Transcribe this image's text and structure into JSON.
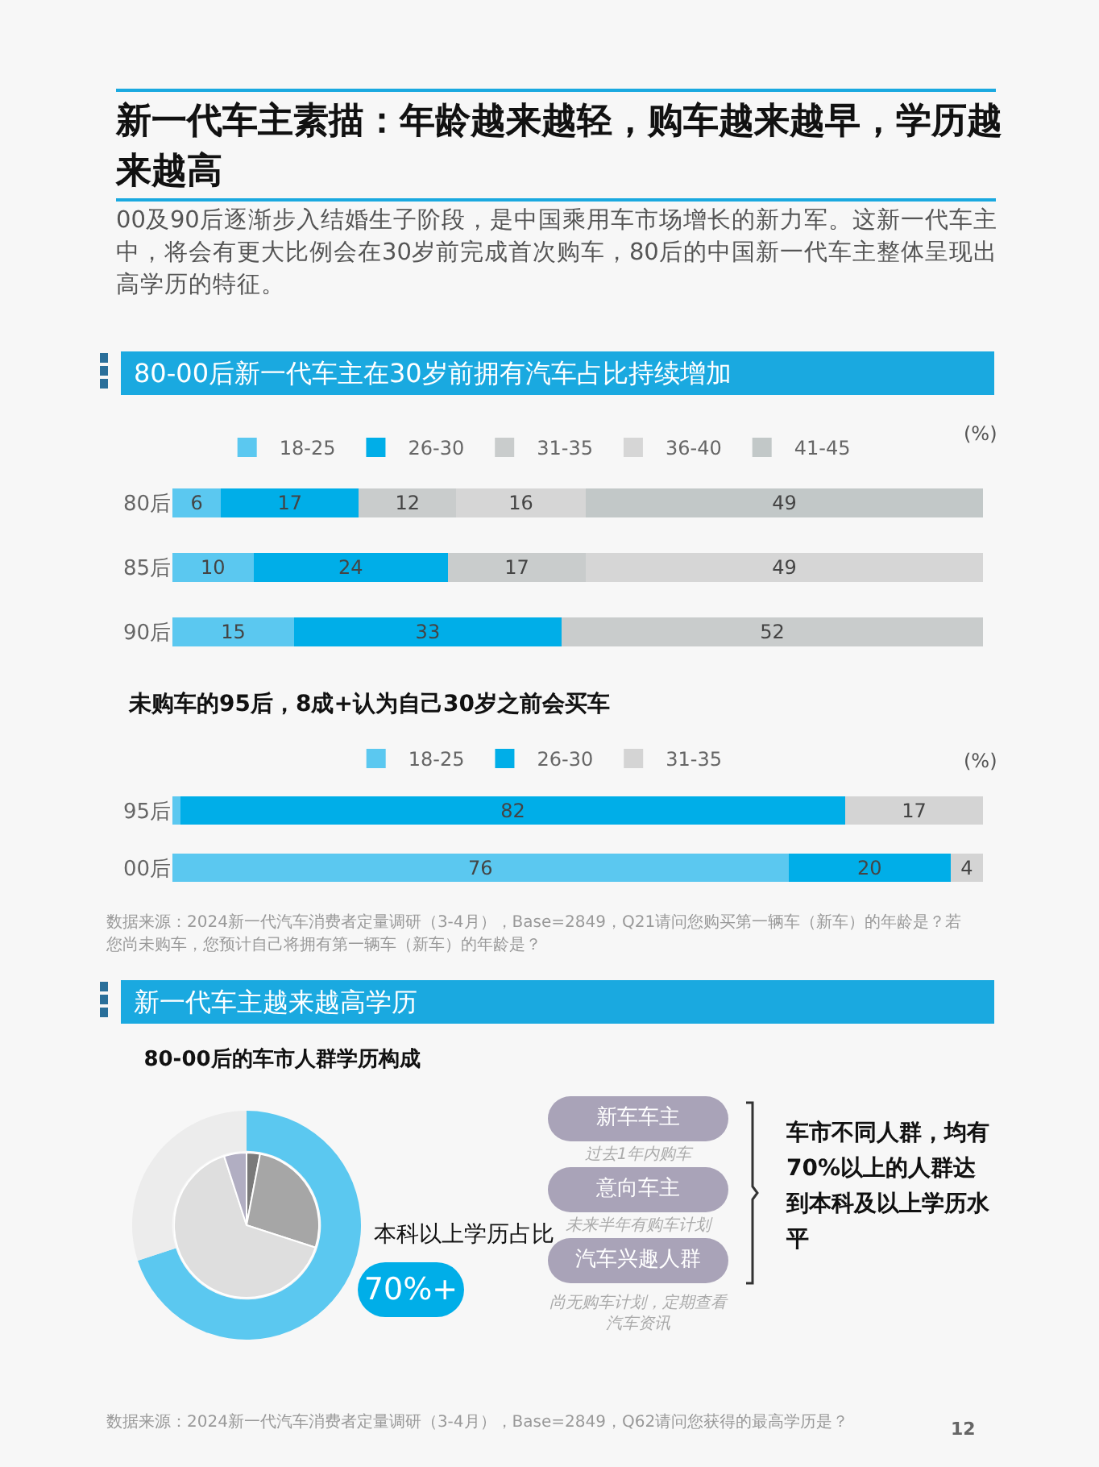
{
  "chart_data": [
    {
      "type": "other",
      "title": "新一代车主素描：年龄越来越轻，购车越来越早，学历越来越高",
      "subtitle": "00及90后逐渐步入结婚生子阶段，是中国乘用车市场增长的新力军。这新一代车主中，将会有更大比例会在30岁前完成首次购车，80后的中国新一代车主整体呈现出高学历的特征。",
      "annotations": [
        "12"
      ]
    },
    {
      "type": "bar",
      "orientation": "horizontal",
      "stacked": true,
      "title": "80-00后新一代车主在30岁前拥有汽车占比持续增加",
      "categories": [
        "80后",
        "85后",
        "90后"
      ],
      "series": [
        {
          "name": "18-25",
          "color": "#5bc8f0",
          "values": [
            6,
            10,
            15
          ]
        },
        {
          "name": "26-30",
          "color": "#00aee8",
          "values": [
            17,
            24,
            33
          ]
        },
        {
          "name": "31-35",
          "color": "#c9cccc",
          "values": [
            12,
            17,
            52
          ]
        },
        {
          "name": "36-40",
          "color": "#d6d6d6",
          "values": [
            16,
            49,
            null
          ]
        },
        {
          "name": "41-45",
          "color": "#c2c8c8",
          "values": [
            49,
            null,
            null
          ]
        }
      ],
      "data_labels": true,
      "legend": "top",
      "tick_labels": "y",
      "annotations": [
        "(%)"
      ]
    },
    {
      "type": "bar",
      "orientation": "horizontal",
      "stacked": true,
      "title": "未购车的95后，8成+认为自己30岁之前会买车",
      "categories": [
        "95后",
        "00后"
      ],
      "series": [
        {
          "name": "18-25",
          "color": "#5bc8f0",
          "values": [
            1,
            76
          ],
          "value_labels": [
            null,
            "76"
          ]
        },
        {
          "name": "26-30",
          "color": "#00aee8",
          "values": [
            82,
            20
          ],
          "value_labels": [
            "82",
            "20"
          ]
        },
        {
          "name": "31-35",
          "color": "#d4d4d4",
          "values": [
            17,
            4
          ],
          "value_labels": [
            "17",
            "4"
          ]
        }
      ],
      "legend": "top",
      "tick_labels": "y",
      "annotations": [
        "(%)",
        "数据来源：2024新一代汽车消费者定量调研（3-4月），Base=2849，Q21请问您购买第一辆车（新车）的年龄是？若您尚未购车，您预计自己将拥有第一辆车（新车）的年龄是？"
      ]
    },
    {
      "type": "donut",
      "title": "新一代车主越来越高学历",
      "subtitle": "80-00后的车市人群学历构成",
      "categories": [
        null,
        null
      ],
      "values": [
        70,
        30
      ],
      "colors": [
        "#5bc8f0",
        "#ececec"
      ],
      "annotations": [
        "本科以上学历占比",
        "70%+",
        "新车车主",
        "过去1年内购车",
        "意向车主",
        "未来半年有购车计划",
        "汽车兴趣人群",
        "尚无购车计划，定期查看汽车资讯",
        "车市不同人群，均有70%以上的人群达到本科及以上学历水平",
        "数据来源：2024新一代汽车消费者定量调研（3-4月），Base=2849，Q62请问您获得的最高学历是？"
      ]
    },
    {
      "type": "pie",
      "categories": [
        null,
        null,
        null,
        null
      ],
      "values": [
        3,
        27,
        65,
        5
      ],
      "colors": [
        "#7a7a7a",
        "#a6a6a6",
        "#dedede",
        "#b1aec2"
      ]
    }
  ]
}
